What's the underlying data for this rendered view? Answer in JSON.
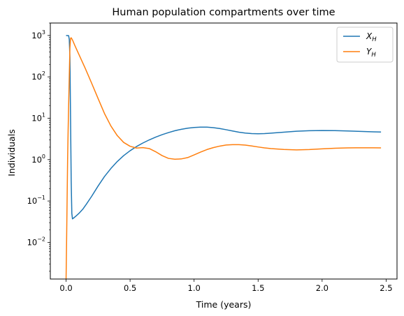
{
  "chart_data": {
    "type": "line",
    "title": "Human population compartments over time",
    "xlabel": "Time (years)",
    "ylabel": "Individuals",
    "xlim": [
      -0.123,
      2.585
    ],
    "ylim": [
      0.0013,
      2000
    ],
    "yscale": "log",
    "x_ticks": [
      0,
      0.5,
      1,
      1.5,
      2,
      2.5
    ],
    "x_tick_labels": [
      "0.0",
      "0.5",
      "1.0",
      "1.5",
      "2.0",
      "2.5"
    ],
    "y_ticks": [
      0.01,
      0.1,
      1,
      10,
      100,
      1000
    ],
    "y_tick_labels": [
      {
        "base": "10",
        "exp": "−2"
      },
      {
        "base": "10",
        "exp": "−1"
      },
      {
        "base": "10",
        "exp": "0"
      },
      {
        "base": "10",
        "exp": "1"
      },
      {
        "base": "10",
        "exp": "2"
      },
      {
        "base": "10",
        "exp": "3"
      }
    ],
    "grid": false,
    "legend_position": "top-right",
    "series": [
      {
        "name": "X_H",
        "label_main": "X",
        "label_sub": "H",
        "color": "#1f77b4",
        "x": [
          0,
          0.02,
          0.025,
          0.03,
          0.035,
          0.04,
          0.045,
          0.05,
          0.06,
          0.08,
          0.1,
          0.13,
          0.16,
          0.2,
          0.25,
          0.3,
          0.35,
          0.4,
          0.45,
          0.5,
          0.55,
          0.6,
          0.65,
          0.7,
          0.75,
          0.8,
          0.85,
          0.9,
          0.95,
          1.0,
          1.05,
          1.1,
          1.15,
          1.2,
          1.25,
          1.3,
          1.35,
          1.4,
          1.45,
          1.5,
          1.55,
          1.6,
          1.7,
          1.8,
          1.9,
          2.0,
          2.1,
          2.2,
          2.3,
          2.4,
          2.46
        ],
        "y": [
          1000,
          990,
          800,
          300,
          10,
          0.3,
          0.05,
          0.037,
          0.039,
          0.044,
          0.05,
          0.063,
          0.085,
          0.13,
          0.23,
          0.39,
          0.61,
          0.9,
          1.25,
          1.64,
          2.07,
          2.52,
          3.0,
          3.5,
          4.0,
          4.5,
          5.0,
          5.4,
          5.75,
          5.98,
          6.08,
          6.08,
          5.92,
          5.64,
          5.28,
          4.93,
          4.6,
          4.38,
          4.25,
          4.22,
          4.25,
          4.35,
          4.6,
          4.85,
          5.0,
          5.05,
          5.02,
          4.93,
          4.8,
          4.7,
          4.65
        ]
      },
      {
        "name": "Y_H",
        "label_main": "Y",
        "label_sub": "H",
        "color": "#ff7f0e",
        "x": [
          0,
          0.004,
          0.008,
          0.012,
          0.016,
          0.02,
          0.025,
          0.03,
          0.035,
          0.04,
          0.05,
          0.07,
          0.1,
          0.15,
          0.2,
          0.25,
          0.3,
          0.35,
          0.4,
          0.45,
          0.5,
          0.55,
          0.6,
          0.65,
          0.7,
          0.75,
          0.8,
          0.85,
          0.9,
          0.95,
          1.0,
          1.05,
          1.1,
          1.15,
          1.2,
          1.25,
          1.3,
          1.35,
          1.4,
          1.45,
          1.5,
          1.55,
          1.6,
          1.7,
          1.8,
          1.9,
          2.0,
          2.1,
          2.2,
          2.3,
          2.4,
          2.46
        ],
        "y": [
          0.0013,
          0.01,
          0.1,
          1,
          5,
          20,
          100,
          500,
          850,
          880,
          780,
          560,
          350,
          160,
          70,
          30,
          13,
          6.5,
          3.8,
          2.6,
          2.1,
          1.9,
          1.95,
          1.85,
          1.55,
          1.25,
          1.07,
          1.02,
          1.04,
          1.12,
          1.3,
          1.52,
          1.75,
          1.95,
          2.12,
          2.25,
          2.3,
          2.3,
          2.24,
          2.14,
          2.02,
          1.92,
          1.85,
          1.76,
          1.72,
          1.75,
          1.82,
          1.88,
          1.92,
          1.93,
          1.93,
          1.92
        ]
      }
    ]
  }
}
